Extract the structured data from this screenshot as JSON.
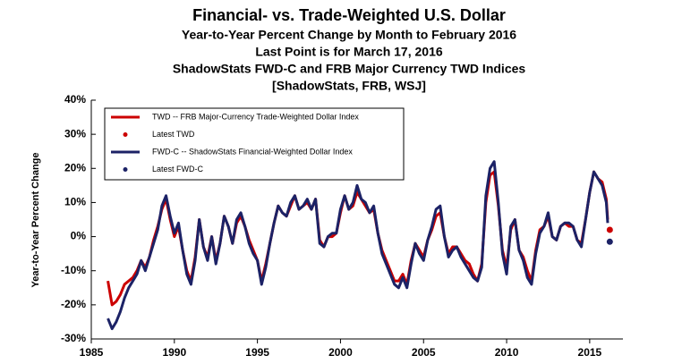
{
  "chart_data": {
    "type": "line",
    "title": "Financial- vs. Trade-Weighted U.S. Dollar",
    "subtitles": [
      "Year-to-Year Percent Change by Month to February 2016",
      "Last Point is for March 17, 2016",
      "ShadowStats FWD-C and FRB Major Currency TWD Indices",
      "[ShadowStats, FRB, WSJ]"
    ],
    "y_label": "Year-to-Year Percent Change",
    "x": [
      1986,
      1986.25,
      1986.5,
      1986.75,
      1987,
      1987.25,
      1987.5,
      1987.75,
      1988,
      1988.25,
      1988.5,
      1988.75,
      1989,
      1989.25,
      1989.5,
      1989.75,
      1990,
      1990.25,
      1990.5,
      1990.75,
      1991,
      1991.25,
      1991.5,
      1991.75,
      1992,
      1992.25,
      1992.5,
      1992.75,
      1993,
      1993.25,
      1993.5,
      1993.75,
      1994,
      1994.25,
      1994.5,
      1994.75,
      1995,
      1995.25,
      1995.5,
      1995.75,
      1996,
      1996.25,
      1996.5,
      1996.75,
      1997,
      1997.25,
      1997.5,
      1997.75,
      1998,
      1998.25,
      1998.5,
      1998.75,
      1999,
      1999.25,
      1999.5,
      1999.75,
      2000,
      2000.25,
      2000.5,
      2000.75,
      2001,
      2001.25,
      2001.5,
      2001.75,
      2002,
      2002.25,
      2002.5,
      2002.75,
      2003,
      2003.25,
      2003.5,
      2003.75,
      2004,
      2004.25,
      2004.5,
      2004.75,
      2005,
      2005.25,
      2005.5,
      2005.75,
      2006,
      2006.25,
      2006.5,
      2006.75,
      2007,
      2007.25,
      2007.5,
      2007.75,
      2008,
      2008.25,
      2008.5,
      2008.75,
      2009,
      2009.25,
      2009.5,
      2009.75,
      2010,
      2010.25,
      2010.5,
      2010.75,
      2011,
      2011.25,
      2011.5,
      2011.75,
      2012,
      2012.25,
      2012.5,
      2012.75,
      2013,
      2013.25,
      2013.5,
      2013.75,
      2014,
      2014.25,
      2014.5,
      2014.75,
      2015,
      2015.25,
      2015.5,
      2015.75,
      2016,
      2016.083
    ],
    "series": [
      {
        "name": "TWD -- FRB Major-Currency Trade-Weighted Dollar Index",
        "style": "line",
        "color": "#cc0000",
        "values": [
          -13,
          -20,
          -19,
          -17,
          -14,
          -13,
          -12,
          -10,
          -7,
          -9,
          -6,
          -1,
          3,
          8,
          11,
          5,
          0,
          3,
          -4,
          -10,
          -13,
          -6,
          5,
          -3,
          -6,
          0,
          -7,
          -2,
          6,
          3,
          -2,
          4,
          6,
          3,
          -1,
          -4,
          -7,
          -13,
          -8,
          -2,
          4,
          9,
          7,
          6,
          9,
          12,
          8,
          9,
          10,
          8,
          11,
          -1,
          -3,
          0,
          0,
          1,
          7,
          12,
          8,
          9,
          13,
          11,
          9,
          7,
          8,
          1,
          -4,
          -7,
          -10,
          -13,
          -13,
          -11,
          -14,
          -7,
          -2,
          -4,
          -6,
          -1,
          2,
          6,
          7,
          0,
          -5,
          -3,
          -3,
          -5,
          -7,
          -8,
          -11,
          -13,
          -8,
          10,
          18,
          19,
          9,
          -4,
          -9,
          2,
          5,
          -4,
          -6,
          -10,
          -13,
          -4,
          2,
          3,
          6,
          0,
          -1,
          3,
          4,
          3,
          3,
          -1,
          -2,
          5,
          13,
          19,
          17,
          16,
          11,
          5
        ]
      },
      {
        "name": "Latest TWD",
        "style": "dot",
        "color": "#cc0000",
        "x": [
          2016.21
        ],
        "values": [
          2
        ]
      },
      {
        "name": "FWD-C -- ShadowStats Financial-Weighted Dollar Index",
        "style": "line",
        "color": "#1c2266",
        "values": [
          -24,
          -27,
          -25,
          -22,
          -18,
          -15,
          -13,
          -11,
          -7,
          -10,
          -6,
          -2,
          2,
          9,
          12,
          6,
          1,
          4,
          -4,
          -11,
          -14,
          -7,
          5,
          -3,
          -7,
          0,
          -8,
          -2,
          6,
          3,
          -2,
          5,
          7,
          3,
          -2,
          -5,
          -7,
          -14,
          -9,
          -2,
          4,
          9,
          7,
          6,
          10,
          12,
          8,
          9,
          11,
          8,
          11,
          -2,
          -3,
          0,
          1,
          1,
          8,
          12,
          8,
          10,
          15,
          11,
          10,
          7,
          9,
          1,
          -5,
          -8,
          -11,
          -14,
          -15,
          -12,
          -15,
          -8,
          -2,
          -5,
          -7,
          -1,
          3,
          8,
          9,
          0,
          -6,
          -4,
          -3,
          -6,
          -8,
          -10,
          -12,
          -13,
          -9,
          12,
          20,
          22,
          10,
          -5,
          -11,
          3,
          5,
          -4,
          -7,
          -12,
          -14,
          -5,
          1,
          3,
          7,
          0,
          -1,
          3,
          4,
          4,
          3,
          -1,
          -3,
          5,
          13,
          19,
          17,
          15,
          10,
          4
        ]
      },
      {
        "name": "Latest FWD-C",
        "style": "dot",
        "color": "#1c2266",
        "x": [
          2016.21
        ],
        "values": [
          -1.5
        ]
      }
    ],
    "xlim": [
      1985,
      2017
    ],
    "xticks": [
      1985,
      1990,
      1995,
      2000,
      2005,
      2010,
      2015
    ],
    "ylim": [
      -30,
      40
    ],
    "yticks": [
      {
        "value": -30,
        "label": "-30%"
      },
      {
        "value": -20,
        "label": "-20%"
      },
      {
        "value": -10,
        "label": "-10%"
      },
      {
        "value": 0,
        "label": "0%"
      },
      {
        "value": 10,
        "label": "10%"
      },
      {
        "value": 20,
        "label": "20%"
      },
      {
        "value": 30,
        "label": "30%"
      },
      {
        "value": 40,
        "label": "40%"
      }
    ],
    "grid": false
  }
}
